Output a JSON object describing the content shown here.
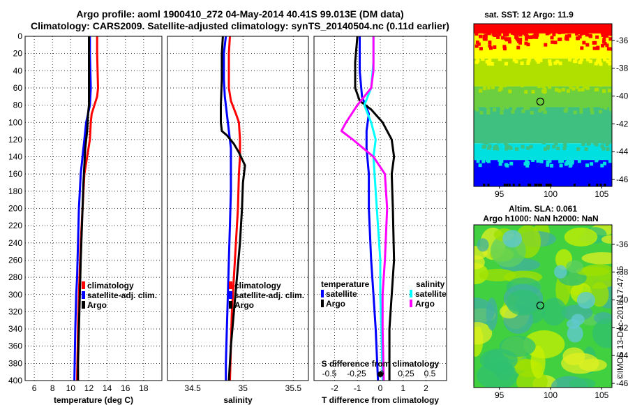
{
  "title_line1": "Argo profile: aoml 1900410_272 04-May-2014 40.41S 99.013E (DM data)",
  "title_line2": "Climatology: CARS2009. Satellite-adjusted climatology: synTS_20140504.nc (0.11d earlier)",
  "watermark": "©IMOS 13-Dec-2018 17:47:35",
  "colors": {
    "climatology": "#ff0000",
    "satellite": "#0000ff",
    "argo": "#000000",
    "salinity_sat": "#00ffff",
    "salinity_argo": "#ff00ff"
  },
  "chart_data": [
    {
      "id": "temperature",
      "type": "line",
      "xlabel": "temperature (deg C)",
      "xlim": [
        5,
        20
      ],
      "xticks": [
        "6",
        "8",
        "10",
        "12",
        "14",
        "16",
        "18"
      ],
      "ylim": [
        0,
        400
      ],
      "yticks": [
        "0",
        "20",
        "40",
        "60",
        "80",
        "100",
        "120",
        "140",
        "160",
        "180",
        "200",
        "220",
        "240",
        "260",
        "280",
        "300",
        "320",
        "340",
        "360",
        "380",
        "400"
      ],
      "legend": [
        "climatology",
        "satellite-adj. clim.",
        "Argo"
      ],
      "series": [
        {
          "name": "climatology",
          "color": "#ff0000",
          "points": [
            [
              12.9,
              0
            ],
            [
              12.9,
              20
            ],
            [
              13.0,
              60
            ],
            [
              12.9,
              70
            ],
            [
              12.6,
              80
            ],
            [
              12.3,
              90
            ],
            [
              12.2,
              100
            ],
            [
              12.1,
              120
            ],
            [
              11.8,
              140
            ],
            [
              11.5,
              160
            ],
            [
              11.4,
              180
            ],
            [
              11.3,
              200
            ],
            [
              11.1,
              240
            ],
            [
              11.0,
              270
            ],
            [
              10.9,
              300
            ],
            [
              10.8,
              340
            ],
            [
              10.7,
              400
            ]
          ]
        },
        {
          "name": "satellite-adj. clim.",
          "color": "#0000ff",
          "points": [
            [
              12.1,
              0
            ],
            [
              12.1,
              20
            ],
            [
              12.2,
              60
            ],
            [
              12.1,
              80
            ],
            [
              11.9,
              90
            ],
            [
              11.7,
              100
            ],
            [
              11.5,
              120
            ],
            [
              11.3,
              140
            ],
            [
              11.1,
              160
            ],
            [
              10.9,
              200
            ],
            [
              10.8,
              240
            ],
            [
              10.7,
              280
            ],
            [
              10.6,
              300
            ],
            [
              10.5,
              340
            ],
            [
              10.4,
              400
            ]
          ]
        },
        {
          "name": "Argo",
          "color": "#000000",
          "points": [
            [
              12.0,
              0
            ],
            [
              12.0,
              20
            ],
            [
              12.0,
              60
            ],
            [
              12.0,
              80
            ],
            [
              11.9,
              90
            ],
            [
              11.8,
              110
            ],
            [
              11.6,
              130
            ],
            [
              11.5,
              150
            ],
            [
              11.4,
              170
            ],
            [
              11.3,
              200
            ],
            [
              11.2,
              230
            ],
            [
              11.1,
              260
            ],
            [
              11.0,
              300
            ],
            [
              10.9,
              340
            ],
            [
              10.8,
              380
            ],
            [
              10.8,
              400
            ]
          ]
        }
      ]
    },
    {
      "id": "salinity",
      "type": "line",
      "xlabel": "salinity",
      "xlim": [
        34.25,
        35.65
      ],
      "xticks": [
        "34.5",
        "35",
        "35.5"
      ],
      "ylim": [
        0,
        400
      ],
      "legend": [
        "climatology",
        "satellite-adj. clim.",
        "Argo"
      ],
      "series": [
        {
          "name": "climatology",
          "color": "#ff0000",
          "points": [
            [
              34.87,
              0
            ],
            [
              34.86,
              20
            ],
            [
              34.86,
              60
            ],
            [
              34.88,
              75
            ],
            [
              34.93,
              90
            ],
            [
              34.96,
              100
            ],
            [
              34.97,
              120
            ],
            [
              34.97,
              140
            ],
            [
              34.96,
              160
            ],
            [
              34.95,
              200
            ],
            [
              34.93,
              240
            ],
            [
              34.91,
              280
            ],
            [
              34.89,
              320
            ],
            [
              34.88,
              360
            ],
            [
              34.87,
              400
            ]
          ]
        },
        {
          "name": "satellite-adj. clim.",
          "color": "#0000ff",
          "points": [
            [
              34.83,
              0
            ],
            [
              34.81,
              20
            ],
            [
              34.81,
              50
            ],
            [
              34.82,
              70
            ],
            [
              34.84,
              90
            ],
            [
              34.86,
              110
            ],
            [
              34.88,
              130
            ],
            [
              34.88,
              150
            ],
            [
              34.88,
              180
            ],
            [
              34.87,
              220
            ],
            [
              34.86,
              260
            ],
            [
              34.85,
              300
            ],
            [
              34.84,
              340
            ],
            [
              34.83,
              380
            ],
            [
              34.83,
              400
            ]
          ]
        },
        {
          "name": "Argo",
          "color": "#000000",
          "points": [
            [
              34.8,
              0
            ],
            [
              34.79,
              20
            ],
            [
              34.79,
              50
            ],
            [
              34.78,
              80
            ],
            [
              34.78,
              100
            ],
            [
              34.79,
              110
            ],
            [
              34.84,
              115
            ],
            [
              34.91,
              125
            ],
            [
              34.96,
              135
            ],
            [
              35.02,
              150
            ],
            [
              35.0,
              170
            ],
            [
              34.99,
              200
            ],
            [
              34.97,
              240
            ],
            [
              34.94,
              280
            ],
            [
              34.91,
              320
            ],
            [
              34.88,
              360
            ],
            [
              34.86,
              400
            ]
          ]
        }
      ]
    },
    {
      "id": "difference",
      "type": "line",
      "xlabel": "T difference from climatology",
      "top_axis_label": "S difference from climatology",
      "xlim": [
        -2.9,
        2.9
      ],
      "xticks": [
        "-2",
        "-1",
        "0",
        "1",
        "2"
      ],
      "top_xticks": [
        "-0.5",
        "-0.25",
        "0",
        "0.25",
        "0.5"
      ],
      "ylim": [
        0,
        400
      ],
      "legend_temperature_title": "temperature",
      "legend_salinity_title": "salinity",
      "legend": [
        "satellite",
        "Argo",
        "satellite",
        "Argo"
      ],
      "series": [
        {
          "name": "temperature satellite",
          "color": "#0000ff",
          "points": [
            [
              -0.9,
              0
            ],
            [
              -0.9,
              40
            ],
            [
              -0.8,
              70
            ],
            [
              -0.5,
              90
            ],
            [
              -0.6,
              110
            ],
            [
              -0.6,
              130
            ],
            [
              -0.5,
              160
            ],
            [
              -0.5,
              200
            ],
            [
              -0.4,
              260
            ],
            [
              -0.3,
              300
            ],
            [
              -0.2,
              340
            ],
            [
              -0.1,
              400
            ]
          ]
        },
        {
          "name": "temperature Argo",
          "color": "#000000",
          "points": [
            [
              -1.0,
              0
            ],
            [
              -1.1,
              30
            ],
            [
              -1.1,
              60
            ],
            [
              -0.9,
              75
            ],
            [
              -0.4,
              85
            ],
            [
              0.1,
              100
            ],
            [
              0.5,
              120
            ],
            [
              0.6,
              140
            ],
            [
              0.5,
              160
            ],
            [
              0.55,
              200
            ],
            [
              0.6,
              260
            ],
            [
              0.5,
              300
            ],
            [
              0.4,
              340
            ],
            [
              0.4,
              400
            ]
          ]
        },
        {
          "name": "salinity satellite",
          "color": "#00ffff",
          "points": [
            [
              -0.3,
              0
            ],
            [
              -0.3,
              30
            ],
            [
              -0.4,
              60
            ],
            [
              -0.7,
              80
            ],
            [
              -0.4,
              100
            ],
            [
              -0.2,
              120
            ],
            [
              -0.3,
              140
            ],
            [
              -0.2,
              180
            ],
            [
              -0.1,
              220
            ],
            [
              0.0,
              260
            ],
            [
              0.0,
              300
            ],
            [
              0.05,
              340
            ],
            [
              0.1,
              400
            ]
          ]
        },
        {
          "name": "salinity Argo",
          "color": "#ff00ff",
          "points": [
            [
              -0.3,
              0
            ],
            [
              -0.3,
              40
            ],
            [
              -0.4,
              60
            ],
            [
              -1.0,
              80
            ],
            [
              -1.5,
              100
            ],
            [
              -1.7,
              110
            ],
            [
              -1.2,
              120
            ],
            [
              -0.3,
              140
            ],
            [
              0.2,
              160
            ],
            [
              0.3,
              200
            ],
            [
              0.2,
              260
            ],
            [
              0.1,
              300
            ],
            [
              0.1,
              340
            ],
            [
              0.15,
              400
            ]
          ]
        }
      ]
    },
    {
      "id": "sst_map",
      "type": "heatmap",
      "title": "sat. SST: 12 Argo: 11.9",
      "xticks": [
        "95",
        "100",
        "105"
      ],
      "yticks": [
        "-36",
        "-38",
        "-40",
        "-42",
        "-44",
        "-46"
      ],
      "xlim": [
        92.5,
        106
      ],
      "ylim": [
        -46.5,
        -34.8
      ],
      "argo_location": [
        99.0,
        -40.4
      ],
      "bands": [
        {
          "from": -35.5,
          "to": -34.8,
          "color": "#ff0000"
        },
        {
          "from": -37.3,
          "to": -35.5,
          "color": "#ffff00"
        },
        {
          "from": -39.3,
          "to": -37.3,
          "color": "#b0e000"
        },
        {
          "from": -40.8,
          "to": -39.3,
          "color": "#6ccf40"
        },
        {
          "from": -43.4,
          "to": -40.8,
          "color": "#40c080"
        },
        {
          "from": -44.6,
          "to": -43.4,
          "color": "#00e0e0"
        },
        {
          "from": -46.5,
          "to": -44.6,
          "color": "#0000ff"
        }
      ]
    },
    {
      "id": "sla_map",
      "type": "heatmap",
      "title_line1": "Altim. SLA: 0.061",
      "title_line2": "Argo h1000: NaN h2000: NaN",
      "xticks": [
        "95",
        "100",
        "105"
      ],
      "yticks": [
        "-36",
        "-38",
        "-40",
        "-42",
        "-44",
        "-46"
      ],
      "xlim": [
        92.5,
        106
      ],
      "ylim": [
        -46.3,
        -34.6
      ],
      "argo_location": [
        99.0,
        -40.4
      ],
      "base_color": "#40d040"
    }
  ]
}
